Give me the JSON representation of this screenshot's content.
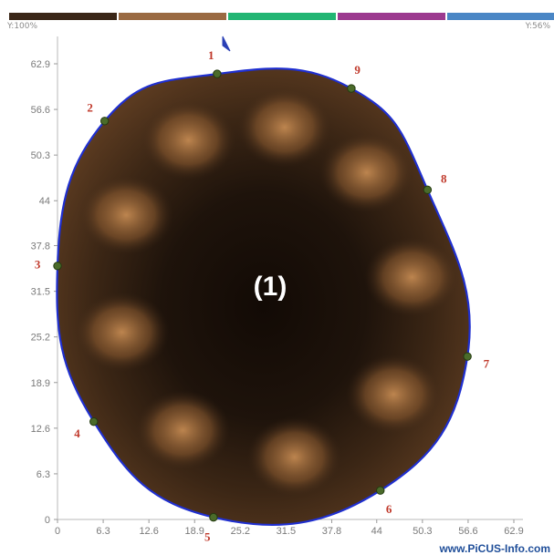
{
  "scale": {
    "left_label": "Y:100%",
    "right_label": "Y:56%",
    "segments": [
      {
        "color": "#3a2617"
      },
      {
        "color": "#9a6a42"
      },
      {
        "color": "#22b573"
      },
      {
        "color": "#9c3a8f"
      },
      {
        "color": "#4a86c5"
      }
    ]
  },
  "chart_data": {
    "type": "scatter",
    "y_ticks": [
      "0",
      "6.3",
      "12.6",
      "18.9",
      "25.2",
      "31.5",
      "37.8",
      "44",
      "50.3",
      "56.6",
      "62.9"
    ],
    "x_ticks": [
      "0",
      "6.3",
      "12.6",
      "18.9",
      "25.2",
      "31.5",
      "37.8",
      "44",
      "50.3",
      "56.6",
      "62.9"
    ],
    "xlim": [
      0,
      62.9
    ],
    "ylim": [
      0,
      62.9
    ],
    "sensors": [
      {
        "label": "1",
        "x": 22,
        "y": 61.5
      },
      {
        "label": "2",
        "x": 6.5,
        "y": 55
      },
      {
        "label": "3",
        "x": 0,
        "y": 35
      },
      {
        "label": "4",
        "x": 5,
        "y": 13.5
      },
      {
        "label": "5",
        "x": 21.5,
        "y": 0.3
      },
      {
        "label": "6",
        "x": 44.5,
        "y": 4
      },
      {
        "label": "7",
        "x": 56.5,
        "y": 22.5
      },
      {
        "label": "8",
        "x": 51,
        "y": 45.5
      },
      {
        "label": "9",
        "x": 40.5,
        "y": 59.5
      }
    ],
    "annotation": "(1)"
  },
  "north_icon": "north-arrow-icon",
  "footer": {
    "text": "www.PiCUS-Info.com"
  }
}
